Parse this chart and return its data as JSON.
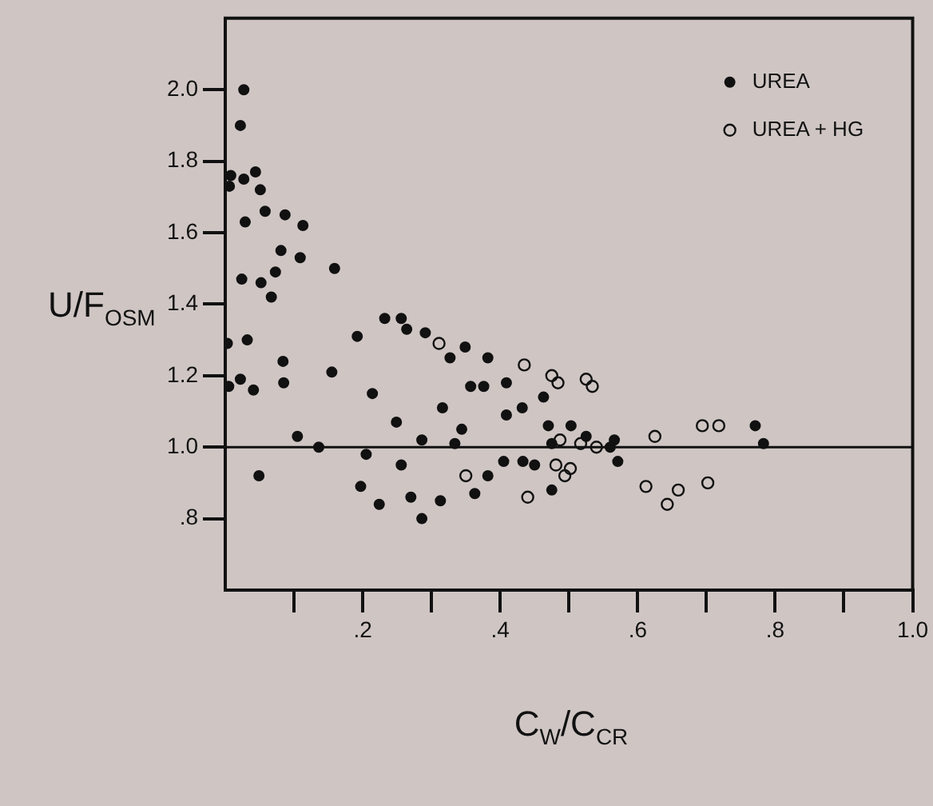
{
  "chart_data": {
    "type": "scatter",
    "xlabel": "C$_{W}$/C$_{CR}$",
    "ylabel": "U/F$_{OSM}$",
    "xlim": [
      0,
      1
    ],
    "ylim": [
      0.6,
      2.2
    ],
    "xticks": [
      {
        "value": 0.1,
        "label": null
      },
      {
        "value": 0.2,
        "label": ".2"
      },
      {
        "value": 0.3,
        "label": null
      },
      {
        "value": 0.4,
        "label": ".4"
      },
      {
        "value": 0.5,
        "label": null
      },
      {
        "value": 0.6,
        "label": ".6"
      },
      {
        "value": 0.7,
        "label": null
      },
      {
        "value": 0.8,
        "label": ".8"
      },
      {
        "value": 0.9,
        "label": null
      },
      {
        "value": 1.0,
        "label": "1.0"
      }
    ],
    "yticks": [
      {
        "value": 0.8,
        "label": ".8"
      },
      {
        "value": 1.0,
        "label": "1.0"
      },
      {
        "value": 1.2,
        "label": "1.2"
      },
      {
        "value": 1.4,
        "label": "1.4"
      },
      {
        "value": 1.6,
        "label": "1.6"
      },
      {
        "value": 1.8,
        "label": "1.8"
      },
      {
        "value": 2.0,
        "label": "2.0"
      }
    ],
    "grid": false,
    "legend": "top right",
    "marker": "circle",
    "ref_lines": [
      {
        "axis": "y",
        "value": 1.0,
        "color": "#111111"
      }
    ],
    "series": [
      {
        "name": "UREA",
        "color": "#111111",
        "x": [
          0.027,
          0.022,
          0.008,
          0.006,
          0.027,
          0.044,
          0.051,
          0.029,
          0.058,
          0.087,
          0.113,
          0.081,
          0.109,
          0.073,
          0.052,
          0.024,
          0.067,
          0.159,
          0.003,
          0.032,
          0.084,
          0.085,
          0.022,
          0.005,
          0.041,
          0.155,
          0.105,
          0.136,
          0.049,
          0.192,
          0.214,
          0.232,
          0.256,
          0.264,
          0.291,
          0.327,
          0.349,
          0.382,
          0.357,
          0.376,
          0.409,
          0.316,
          0.409,
          0.432,
          0.249,
          0.344,
          0.286,
          0.334,
          0.205,
          0.256,
          0.405,
          0.433,
          0.45,
          0.197,
          0.382,
          0.363,
          0.224,
          0.27,
          0.286,
          0.313,
          0.463,
          0.47,
          0.503,
          0.525,
          0.475,
          0.566,
          0.56,
          0.475,
          0.571,
          0.771,
          0.783
        ],
        "values": [
          2.0,
          1.9,
          1.76,
          1.73,
          1.75,
          1.77,
          1.72,
          1.63,
          1.66,
          1.65,
          1.62,
          1.55,
          1.53,
          1.49,
          1.46,
          1.47,
          1.42,
          1.5,
          1.29,
          1.3,
          1.24,
          1.18,
          1.19,
          1.17,
          1.16,
          1.21,
          1.03,
          1.0,
          0.92,
          1.31,
          1.15,
          1.36,
          1.36,
          1.33,
          1.32,
          1.25,
          1.28,
          1.25,
          1.17,
          1.17,
          1.18,
          1.11,
          1.09,
          1.11,
          1.07,
          1.05,
          1.02,
          1.01,
          0.98,
          0.95,
          0.96,
          0.96,
          0.95,
          0.89,
          0.92,
          0.87,
          0.84,
          0.86,
          0.8,
          0.85,
          1.14,
          1.06,
          1.06,
          1.03,
          1.01,
          1.02,
          1.0,
          0.88,
          0.96,
          1.06,
          1.01
        ]
      },
      {
        "name": "UREA + HG",
        "color": "#111111",
        "x": [
          0.311,
          0.435,
          0.35,
          0.44,
          0.475,
          0.484,
          0.525,
          0.534,
          0.487,
          0.517,
          0.54,
          0.625,
          0.694,
          0.718,
          0.481,
          0.502,
          0.494,
          0.612,
          0.643,
          0.659,
          0.702
        ],
        "values": [
          1.29,
          1.23,
          0.92,
          0.86,
          1.2,
          1.18,
          1.19,
          1.17,
          1.02,
          1.01,
          1.0,
          1.03,
          1.06,
          1.06,
          0.95,
          0.94,
          0.92,
          0.89,
          0.84,
          0.88,
          0.9
        ]
      }
    ]
  }
}
